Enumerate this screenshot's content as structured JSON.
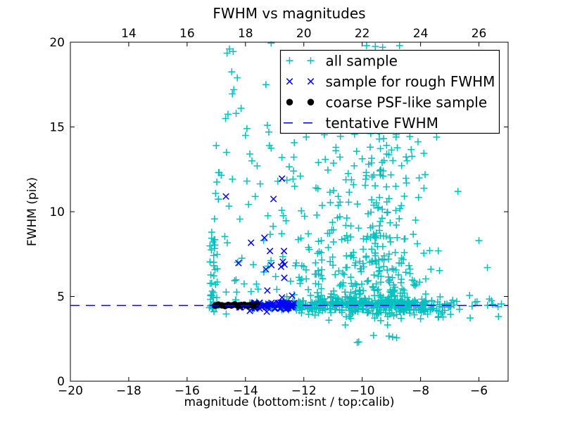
{
  "chart_data": {
    "type": "scatter",
    "title": "FWHM vs magnitudes",
    "xlabel": "magnitude (bottom:isnt / top:calib)",
    "ylabel": "FWHM (pix)",
    "x_range": [
      -20,
      -5
    ],
    "y_range": [
      0,
      20
    ],
    "grid": false,
    "x_ticks": {
      "values": [
        -20,
        -18,
        -16,
        -14,
        -12,
        -10,
        -8,
        -6
      ],
      "labels": [
        "−20",
        "−18",
        "−16",
        "−14",
        "−12",
        "−10",
        "−8",
        "−6"
      ]
    },
    "y_ticks": {
      "values": [
        0,
        5,
        10,
        15,
        20
      ],
      "labels": [
        "0",
        "5",
        "10",
        "15",
        "20"
      ]
    },
    "top_ticks": {
      "positions": [
        -18,
        -16,
        -14,
        -12,
        -10,
        -8,
        -6
      ],
      "labels": [
        "14",
        "16",
        "18",
        "20",
        "22",
        "24",
        "26"
      ]
    },
    "seed": 7,
    "series": [
      {
        "id": "all-sample",
        "label": "all sample",
        "marker": "plus",
        "color": "#00bfbf",
        "points": [
          [
            -14.55,
            19.6
          ],
          [
            -14.42,
            19.45
          ],
          [
            -14.63,
            19.35
          ],
          [
            -13.12,
            19.95
          ],
          [
            -9.85,
            19.8
          ],
          [
            -9.55,
            19.75
          ],
          [
            -9.3,
            19.7
          ],
          [
            -8.72,
            19.8
          ],
          [
            -14.47,
            18.25
          ],
          [
            -14.28,
            17.9
          ],
          [
            -14.4,
            17.2
          ],
          [
            -14.45,
            16.95
          ],
          [
            -13.3,
            17.5
          ],
          [
            -14.6,
            15.75
          ],
          [
            -14.32,
            15.8
          ],
          [
            -14.15,
            16.1
          ],
          [
            -14.68,
            15.5
          ],
          [
            -13.95,
            14.9
          ],
          [
            -14.0,
            14.5
          ],
          [
            -13.25,
            15.1
          ],
          [
            -13.2,
            14.7
          ],
          [
            -15.0,
            13.9
          ],
          [
            -14.65,
            13.5
          ],
          [
            -14.9,
            12.3
          ],
          [
            -14.83,
            12.15
          ],
          [
            -13.85,
            13.4
          ],
          [
            -13.78,
            13.0
          ],
          [
            -13.6,
            12.7
          ],
          [
            -13.18,
            13.9
          ],
          [
            -13.12,
            13.75
          ],
          [
            -12.5,
            12.65
          ],
          [
            -12.35,
            12.4
          ],
          [
            -12.12,
            12.1
          ],
          [
            -12.75,
            13.2
          ],
          [
            -11.5,
            12.9
          ],
          [
            -10.9,
            13.6
          ],
          [
            -7.45,
            14.4
          ],
          [
            -6.72,
            11.2
          ],
          [
            -8.17,
            9.5
          ],
          [
            -6.0,
            8.3
          ],
          [
            -5.71,
            6.7
          ],
          [
            -11.14,
            3.6
          ],
          [
            -10.58,
            3.32
          ],
          [
            -10.17,
            2.28
          ],
          [
            -10.12,
            2.32
          ],
          [
            -9.61,
            2.7
          ],
          [
            -9.13,
            3.32
          ],
          [
            -9.08,
            2.66
          ],
          [
            -8.96,
            2.61
          ],
          [
            -8.82,
            2.57
          ],
          [
            -7.38,
            3.82
          ],
          [
            -6.97,
            3.94
          ],
          [
            -6.3,
            3.73
          ],
          [
            -5.33,
            3.82
          ],
          [
            -7.33,
            4.98
          ],
          [
            -6.9,
            4.77
          ],
          [
            -6.32,
            5.06
          ],
          [
            -5.64,
            4.85
          ],
          [
            -5.23,
            4.56
          ],
          [
            -14.66,
            3.97
          ],
          [
            -15.08,
            4.1
          ]
        ],
        "clusters": [
          {
            "n": 40,
            "x": [
              -15.24,
              -14.96
            ],
            "y": [
              4.3,
              8.6
            ],
            "pow": 1.7
          },
          {
            "n": 7,
            "x": [
              -15.16,
              -14.84
            ],
            "y": [
              8.7,
              12.4
            ],
            "pow": 1
          },
          {
            "n": 55,
            "x": [
              -14.95,
              -11.35
            ],
            "y": [
              4.8,
              12.0
            ],
            "pow": 2
          },
          {
            "n": 25,
            "x": [
              -12.45,
              -11.3
            ],
            "y": [
              4.7,
              8.5
            ],
            "pow": 1.8
          },
          {
            "n": 240,
            "x": [
              -12.55,
              -7.55
            ],
            "y": [
              4.18,
              4.75
            ],
            "pow": 1
          },
          {
            "n": 18,
            "x": [
              -13.85,
              -12.5
            ],
            "y": [
              4.2,
              4.72
            ],
            "pow": 1
          },
          {
            "n": 55,
            "x": [
              -10.9,
              -6.95
            ],
            "y": [
              3.55,
              4.2
            ],
            "pow": 0.55
          },
          {
            "n": 8,
            "x": [
              -12.6,
              -11.0
            ],
            "y": [
              3.9,
              4.2
            ],
            "pow": 1
          },
          {
            "n": 300,
            "gx": [
              -9.35,
              0.8,
              -11.4,
              -7.35
            ],
            "y": [
              4.5,
              12.2
            ],
            "pow": 2.1
          },
          {
            "n": 45,
            "x": [
              -11.6,
              -10.15
            ],
            "y": [
              4.6,
              11.5
            ],
            "pow": 1.6
          },
          {
            "n": 42,
            "gx": [
              -9.6,
              0.95,
              -11.6,
              -7.6
            ],
            "y": [
              11.8,
              15.0
            ],
            "pow": 1.4
          },
          {
            "n": 16,
            "x": [
              -12.35,
              -8.0
            ],
            "y": [
              12.4,
              16.2
            ],
            "pow": 1.3
          },
          {
            "n": 20,
            "x": [
              -7.5,
              -5.15
            ],
            "y": [
              4.2,
              4.78
            ],
            "pow": 1
          }
        ]
      },
      {
        "id": "rough-fwhm",
        "label": "sample for rough FWHM",
        "marker": "x",
        "color": "#0000ff",
        "points": [
          [
            -14.67,
            10.9
          ],
          [
            -12.75,
            11.95
          ],
          [
            -13.04,
            10.75
          ],
          [
            -13.35,
            8.46
          ],
          [
            -13.81,
            8.17
          ],
          [
            -13.16,
            7.68
          ],
          [
            -12.68,
            7.68
          ],
          [
            -14.24,
            6.97
          ],
          [
            -13.3,
            6.6
          ],
          [
            -13.11,
            6.85
          ],
          [
            -12.72,
            7.05
          ],
          [
            -12.66,
            6.88
          ],
          [
            -12.78,
            6.75
          ],
          [
            -12.67,
            6.1
          ],
          [
            -13.25,
            5.35
          ],
          [
            -12.75,
            4.94
          ],
          [
            -13.85,
            4.15
          ],
          [
            -13.27,
            4.1
          ],
          [
            -12.62,
            4.23
          ],
          [
            -12.4,
            5.05
          ]
        ],
        "clusters": [
          {
            "n": 70,
            "x": [
              -13.8,
              -12.33
            ],
            "y": [
              4.28,
              4.64
            ],
            "pow": 1
          },
          {
            "n": 8,
            "x": [
              -14.35,
              -13.8
            ],
            "y": [
              4.34,
              4.58
            ],
            "pow": 1
          }
        ]
      },
      {
        "id": "coarse-psf",
        "label": "coarse PSF-like sample",
        "marker": "dot",
        "color": "#000000",
        "points": [
          [
            -15.04,
            4.46
          ],
          [
            -14.93,
            4.52
          ],
          [
            -14.81,
            4.48
          ],
          [
            -14.7,
            4.44
          ],
          [
            -14.59,
            4.5
          ],
          [
            -14.48,
            4.47
          ],
          [
            -14.37,
            4.53
          ],
          [
            -14.26,
            4.45
          ],
          [
            -14.15,
            4.49
          ],
          [
            -14.04,
            4.51
          ],
          [
            -13.93,
            4.46
          ],
          [
            -13.82,
            4.5
          ],
          [
            -13.71,
            4.47
          ],
          [
            -13.6,
            4.52
          ]
        ],
        "clusters": []
      }
    ],
    "hline": {
      "label": "tentative FWHM",
      "y": 4.47,
      "color": "#0000ff",
      "style": "dashed"
    },
    "legend": {
      "position": "upper right",
      "entries": [
        {
          "marker": "plus",
          "color": "#00bfbf",
          "label": "all sample"
        },
        {
          "marker": "x",
          "color": "#0000ff",
          "label": "sample for rough FWHM"
        },
        {
          "marker": "dot",
          "color": "#000000",
          "label": "coarse PSF-like sample"
        },
        {
          "marker": "dash",
          "color": "#0000ff",
          "label": "tentative FWHM"
        }
      ]
    }
  }
}
